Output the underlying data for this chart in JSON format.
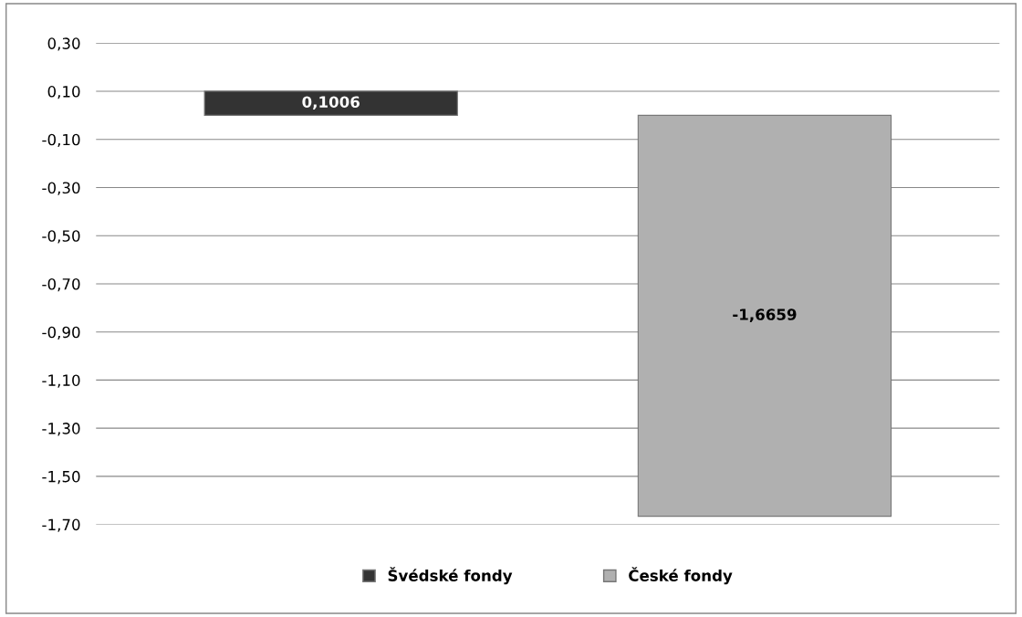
{
  "chart_data": {
    "type": "bar",
    "categories": [
      null
    ],
    "series": [
      {
        "name": "Švédské fondy",
        "color": "#333333",
        "values": [
          0.1006
        ],
        "value_labels": [
          "0,1006"
        ]
      },
      {
        "name": "České fondy",
        "color": "#b0b0b0",
        "values": [
          -1.6659
        ],
        "value_labels": [
          "-1,6659"
        ]
      }
    ],
    "ylim": [
      -1.7,
      0.3
    ],
    "yticks": [
      {
        "value": -1.7,
        "label": "-1,70"
      },
      {
        "value": -1.5,
        "label": "-1,50"
      },
      {
        "value": -1.3,
        "label": "-1,30"
      },
      {
        "value": -1.1,
        "label": "-1,10"
      },
      {
        "value": -0.9,
        "label": "-0,90"
      },
      {
        "value": -0.7,
        "label": "-0,70"
      },
      {
        "value": -0.5,
        "label": "-0,50"
      },
      {
        "value": -0.3,
        "label": "-0,30"
      },
      {
        "value": -0.1,
        "label": "-0,10"
      },
      {
        "value": 0.1,
        "label": "0,10"
      },
      {
        "value": 0.3,
        "label": "0,30"
      }
    ],
    "grid": "y",
    "legend": "bottom"
  }
}
